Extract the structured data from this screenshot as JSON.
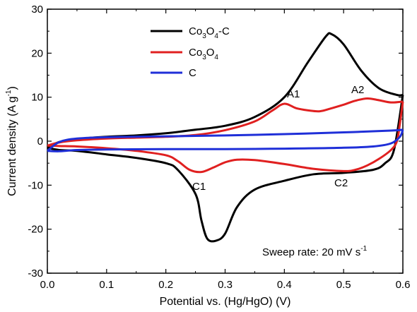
{
  "chart_data": {
    "type": "line",
    "xlabel": "Potential vs. (Hg/HgO) (V)",
    "ylabel": "Current density (A g-1)",
    "xlim": [
      0.0,
      0.6
    ],
    "ylim": [
      -30,
      30
    ],
    "xticks": [
      "0.0",
      "0.1",
      "0.2",
      "0.3",
      "0.4",
      "0.5",
      "0.6"
    ],
    "yticks": [
      "-30",
      "-20",
      "-10",
      "0",
      "10",
      "20",
      "30"
    ],
    "grid": false,
    "legend": "top-left",
    "annotations": {
      "A1": "A1",
      "A2": "A2",
      "C1": "C1",
      "C2": "C2",
      "sweep_rate": "Sweep rate: 20 mV s-1"
    },
    "series": [
      {
        "name": "Co3O4-C",
        "color": "#000000",
        "anodic": [
          [
            0.0,
            -1.5
          ],
          [
            0.02,
            -0.2
          ],
          [
            0.05,
            0.5
          ],
          [
            0.1,
            1.0
          ],
          [
            0.15,
            1.3
          ],
          [
            0.2,
            1.8
          ],
          [
            0.25,
            2.6
          ],
          [
            0.3,
            3.5
          ],
          [
            0.35,
            5.5
          ],
          [
            0.4,
            10
          ],
          [
            0.44,
            18
          ],
          [
            0.47,
            23.8
          ],
          [
            0.48,
            24.3
          ],
          [
            0.5,
            22
          ],
          [
            0.53,
            16
          ],
          [
            0.56,
            12
          ],
          [
            0.59,
            10.5
          ],
          [
            0.6,
            10.5
          ]
        ],
        "cathodic": [
          [
            0.6,
            10.5
          ],
          [
            0.585,
            -2
          ],
          [
            0.57,
            -5
          ],
          [
            0.55,
            -6.5
          ],
          [
            0.5,
            -7.2
          ],
          [
            0.45,
            -7.5
          ],
          [
            0.4,
            -9
          ],
          [
            0.35,
            -11
          ],
          [
            0.32,
            -15
          ],
          [
            0.3,
            -21
          ],
          [
            0.285,
            -22.6
          ],
          [
            0.27,
            -22.2
          ],
          [
            0.26,
            -18
          ],
          [
            0.25,
            -12
          ],
          [
            0.22,
            -6.5
          ],
          [
            0.2,
            -5
          ],
          [
            0.15,
            -3.8
          ],
          [
            0.1,
            -3
          ],
          [
            0.05,
            -2.2
          ],
          [
            0.02,
            -2
          ],
          [
            0.0,
            -1.5
          ]
        ]
      },
      {
        "name": "Co3O4",
        "color": "#e02020",
        "anodic": [
          [
            0.0,
            -1.0
          ],
          [
            0.02,
            -0.3
          ],
          [
            0.05,
            0.2
          ],
          [
            0.1,
            0.6
          ],
          [
            0.15,
            0.8
          ],
          [
            0.2,
            1.0
          ],
          [
            0.25,
            1.4
          ],
          [
            0.3,
            2.5
          ],
          [
            0.35,
            4.5
          ],
          [
            0.38,
            7.0
          ],
          [
            0.4,
            8.5
          ],
          [
            0.42,
            7.5
          ],
          [
            0.44,
            7.0
          ],
          [
            0.46,
            6.8
          ],
          [
            0.48,
            7.5
          ],
          [
            0.5,
            8.3
          ],
          [
            0.52,
            9.2
          ],
          [
            0.54,
            9.7
          ],
          [
            0.56,
            9.3
          ],
          [
            0.58,
            8.8
          ],
          [
            0.6,
            9.0
          ]
        ],
        "cathodic": [
          [
            0.6,
            9.0
          ],
          [
            0.595,
            4
          ],
          [
            0.59,
            0
          ],
          [
            0.58,
            -2
          ],
          [
            0.56,
            -4
          ],
          [
            0.54,
            -5.5
          ],
          [
            0.52,
            -6.5
          ],
          [
            0.5,
            -6.8
          ],
          [
            0.45,
            -6.3
          ],
          [
            0.4,
            -5.2
          ],
          [
            0.35,
            -4.3
          ],
          [
            0.32,
            -4.2
          ],
          [
            0.3,
            -4.8
          ],
          [
            0.28,
            -6.0
          ],
          [
            0.26,
            -7.0
          ],
          [
            0.24,
            -6.5
          ],
          [
            0.22,
            -4.5
          ],
          [
            0.2,
            -3.2
          ],
          [
            0.15,
            -2.2
          ],
          [
            0.1,
            -1.6
          ],
          [
            0.05,
            -1.2
          ],
          [
            0.02,
            -1.1
          ],
          [
            0.0,
            -1.0
          ]
        ]
      },
      {
        "name": "C",
        "color": "#1f2fd8",
        "anodic": [
          [
            0.0,
            -2.2
          ],
          [
            0.02,
            -0.2
          ],
          [
            0.05,
            0.6
          ],
          [
            0.1,
            0.9
          ],
          [
            0.2,
            1.1
          ],
          [
            0.3,
            1.3
          ],
          [
            0.4,
            1.6
          ],
          [
            0.5,
            2.0
          ],
          [
            0.58,
            2.4
          ],
          [
            0.6,
            2.6
          ]
        ],
        "cathodic": [
          [
            0.6,
            2.6
          ],
          [
            0.595,
            1.0
          ],
          [
            0.58,
            -0.5
          ],
          [
            0.55,
            -1.2
          ],
          [
            0.5,
            -1.5
          ],
          [
            0.4,
            -1.7
          ],
          [
            0.3,
            -1.8
          ],
          [
            0.2,
            -1.8
          ],
          [
            0.1,
            -1.9
          ],
          [
            0.05,
            -2.0
          ],
          [
            0.02,
            -2.3
          ],
          [
            0.0,
            -2.2
          ]
        ]
      }
    ]
  }
}
